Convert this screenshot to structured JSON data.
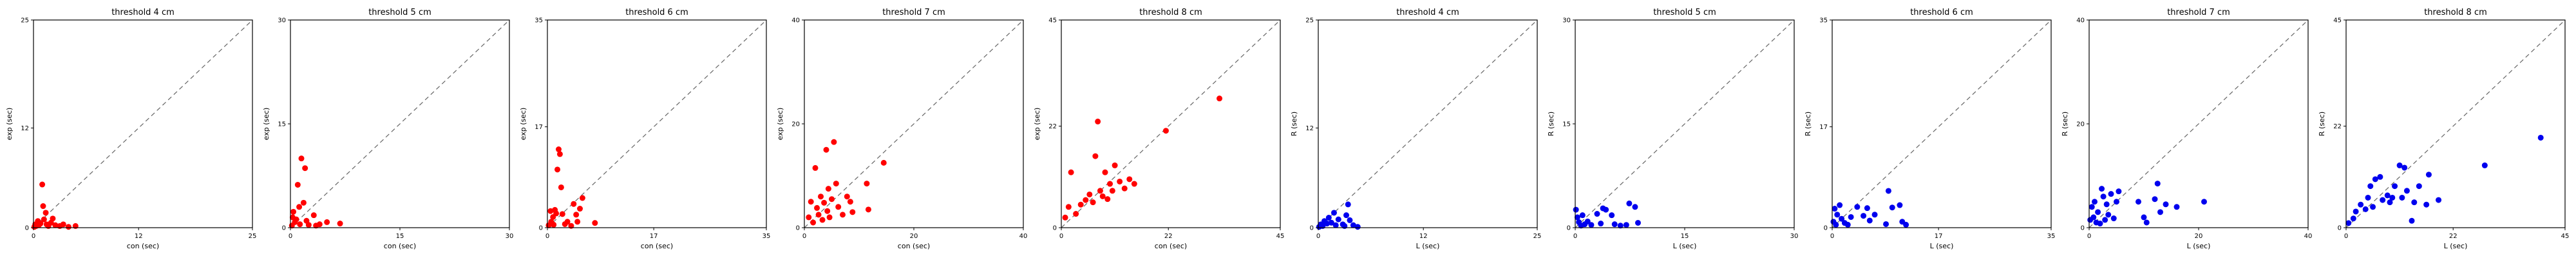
{
  "chart_data": [
    {
      "type": "scatter",
      "title": "threshold 4 cm",
      "xlabel": "con (sec)",
      "ylabel": "exp (sec)",
      "xlim": [
        0,
        25
      ],
      "ylim": [
        0,
        25
      ],
      "xticks": [
        0,
        12,
        25
      ],
      "yticks": [
        0,
        12,
        25
      ],
      "color": "#ff0000",
      "diagonal": true,
      "points": [
        [
          0.1,
          0.1
        ],
        [
          0.2,
          0.4
        ],
        [
          0.3,
          0.2
        ],
        [
          0.5,
          0.8
        ],
        [
          0.6,
          0.3
        ],
        [
          0.8,
          0.5
        ],
        [
          1.0,
          5.2
        ],
        [
          1.1,
          2.6
        ],
        [
          1.2,
          1.0
        ],
        [
          1.4,
          1.8
        ],
        [
          1.5,
          0.4
        ],
        [
          1.7,
          0.2
        ],
        [
          2.0,
          0.6
        ],
        [
          2.2,
          1.1
        ],
        [
          2.5,
          0.3
        ],
        [
          3.0,
          0.2
        ],
        [
          3.4,
          0.4
        ],
        [
          4.0,
          0.1
        ],
        [
          4.8,
          0.2
        ]
      ]
    },
    {
      "type": "scatter",
      "title": "threshold 5 cm",
      "xlabel": "con (sec)",
      "ylabel": "exp (sec)",
      "xlim": [
        0,
        30
      ],
      "ylim": [
        0,
        30
      ],
      "xticks": [
        0,
        15,
        30
      ],
      "yticks": [
        0,
        15,
        30
      ],
      "color": "#ff0000",
      "diagonal": true,
      "points": [
        [
          0.2,
          0.3
        ],
        [
          0.3,
          1.5
        ],
        [
          0.4,
          2.3
        ],
        [
          0.6,
          0.8
        ],
        [
          0.8,
          1.2
        ],
        [
          1.0,
          6.2
        ],
        [
          1.2,
          3.0
        ],
        [
          1.3,
          0.5
        ],
        [
          1.5,
          10.0
        ],
        [
          1.8,
          3.6
        ],
        [
          2.0,
          8.6
        ],
        [
          2.2,
          1.0
        ],
        [
          2.5,
          0.4
        ],
        [
          3.2,
          1.8
        ],
        [
          3.5,
          0.3
        ],
        [
          4.0,
          0.5
        ],
        [
          5.0,
          0.8
        ],
        [
          6.8,
          0.6
        ]
      ]
    },
    {
      "type": "scatter",
      "title": "threshold 6 cm",
      "xlabel": "con (sec)",
      "ylabel": "exp (sec)",
      "xlim": [
        0,
        35
      ],
      "ylim": [
        0,
        35
      ],
      "xticks": [
        0,
        17,
        35
      ],
      "yticks": [
        0,
        17,
        35
      ],
      "color": "#ff0000",
      "diagonal": true,
      "points": [
        [
          0.2,
          0.4
        ],
        [
          0.5,
          2.8
        ],
        [
          0.6,
          1.0
        ],
        [
          0.9,
          1.8
        ],
        [
          1.0,
          0.5
        ],
        [
          1.2,
          3.0
        ],
        [
          1.4,
          2.4
        ],
        [
          1.6,
          9.8
        ],
        [
          1.8,
          13.2
        ],
        [
          2.0,
          12.4
        ],
        [
          2.2,
          6.8
        ],
        [
          2.4,
          2.3
        ],
        [
          2.8,
          0.6
        ],
        [
          3.2,
          1.0
        ],
        [
          3.8,
          0.3
        ],
        [
          4.2,
          4.0
        ],
        [
          4.6,
          2.2
        ],
        [
          4.8,
          1.0
        ],
        [
          5.2,
          3.2
        ],
        [
          5.6,
          5.0
        ],
        [
          7.6,
          0.8
        ]
      ]
    },
    {
      "type": "scatter",
      "title": "threshold 7 cm",
      "xlabel": "con (sec)",
      "ylabel": "exp (sec)",
      "xlim": [
        0,
        40
      ],
      "ylim": [
        0,
        40
      ],
      "xticks": [
        0,
        20,
        40
      ],
      "yticks": [
        0,
        20,
        40
      ],
      "color": "#ff0000",
      "diagonal": true,
      "points": [
        [
          0.8,
          2.0
        ],
        [
          1.2,
          5.0
        ],
        [
          1.6,
          1.0
        ],
        [
          2.0,
          11.5
        ],
        [
          2.3,
          3.8
        ],
        [
          2.6,
          2.5
        ],
        [
          3.0,
          6.0
        ],
        [
          3.3,
          1.5
        ],
        [
          3.6,
          4.8
        ],
        [
          4.0,
          15.0
        ],
        [
          4.2,
          3.2
        ],
        [
          4.4,
          7.5
        ],
        [
          4.6,
          2.0
        ],
        [
          5.0,
          5.5
        ],
        [
          5.4,
          16.5
        ],
        [
          5.8,
          8.5
        ],
        [
          6.2,
          4.0
        ],
        [
          7.0,
          2.5
        ],
        [
          7.8,
          6.0
        ],
        [
          8.4,
          5.0
        ],
        [
          8.8,
          3.0
        ],
        [
          11.4,
          8.5
        ],
        [
          11.7,
          3.5
        ],
        [
          14.5,
          12.5
        ]
      ]
    },
    {
      "type": "scatter",
      "title": "threshold 8 cm",
      "xlabel": "con (sec)",
      "ylabel": "exp (sec)",
      "xlim": [
        0,
        45
      ],
      "ylim": [
        0,
        45
      ],
      "xticks": [
        0,
        22,
        45
      ],
      "yticks": [
        0,
        22,
        45
      ],
      "color": "#ff0000",
      "diagonal": true,
      "points": [
        [
          0.8,
          2.2
        ],
        [
          1.5,
          4.5
        ],
        [
          2.0,
          12.0
        ],
        [
          3.0,
          3.0
        ],
        [
          4.0,
          5.0
        ],
        [
          5.0,
          6.0
        ],
        [
          5.8,
          7.2
        ],
        [
          6.5,
          5.5
        ],
        [
          7.0,
          15.5
        ],
        [
          7.5,
          23.0
        ],
        [
          8.0,
          8.0
        ],
        [
          8.5,
          6.8
        ],
        [
          9.0,
          12.0
        ],
        [
          9.5,
          6.2
        ],
        [
          10.0,
          9.5
        ],
        [
          10.5,
          8.0
        ],
        [
          11.0,
          13.5
        ],
        [
          12.0,
          10.0
        ],
        [
          13.0,
          8.5
        ],
        [
          14.0,
          10.5
        ],
        [
          15.0,
          9.5
        ],
        [
          21.5,
          21.0
        ],
        [
          32.5,
          28.0
        ]
      ]
    },
    {
      "type": "scatter",
      "title": "threshold 4 cm",
      "xlabel": "L (sec)",
      "ylabel": "R (sec)",
      "xlim": [
        0,
        25
      ],
      "ylim": [
        0,
        25
      ],
      "xticks": [
        0,
        12,
        25
      ],
      "yticks": [
        0,
        12,
        25
      ],
      "color": "#0000ee",
      "diagonal": true,
      "points": [
        [
          0.1,
          0.1
        ],
        [
          0.3,
          0.4
        ],
        [
          0.5,
          0.2
        ],
        [
          0.7,
          0.8
        ],
        [
          1.0,
          0.5
        ],
        [
          1.2,
          1.2
        ],
        [
          1.5,
          0.6
        ],
        [
          1.8,
          1.8
        ],
        [
          2.0,
          0.3
        ],
        [
          2.3,
          1.0
        ],
        [
          2.8,
          0.4
        ],
        [
          3.0,
          0.2
        ],
        [
          3.2,
          1.5
        ],
        [
          3.4,
          2.8
        ],
        [
          3.6,
          0.9
        ],
        [
          4.0,
          0.3
        ],
        [
          4.5,
          0.1
        ]
      ]
    },
    {
      "type": "scatter",
      "title": "threshold 5 cm",
      "xlabel": "L (sec)",
      "ylabel": "R (sec)",
      "xlim": [
        0,
        30
      ],
      "ylim": [
        0,
        30
      ],
      "xticks": [
        0,
        15,
        30
      ],
      "yticks": [
        0,
        15,
        30
      ],
      "color": "#0000ee",
      "diagonal": true,
      "points": [
        [
          0.1,
          2.6
        ],
        [
          0.3,
          1.5
        ],
        [
          0.5,
          0.8
        ],
        [
          0.8,
          0.3
        ],
        [
          1.0,
          1.8
        ],
        [
          1.3,
          0.5
        ],
        [
          1.7,
          0.9
        ],
        [
          2.2,
          0.4
        ],
        [
          3.0,
          2.0
        ],
        [
          3.5,
          0.6
        ],
        [
          3.8,
          2.8
        ],
        [
          4.2,
          2.6
        ],
        [
          5.0,
          1.8
        ],
        [
          5.4,
          0.5
        ],
        [
          6.2,
          0.3
        ],
        [
          7.0,
          0.4
        ],
        [
          7.4,
          3.5
        ],
        [
          8.2,
          3.0
        ],
        [
          8.6,
          0.7
        ]
      ]
    },
    {
      "type": "scatter",
      "title": "threshold 6 cm",
      "xlabel": "L (sec)",
      "ylabel": "R (sec)",
      "xlim": [
        0,
        35
      ],
      "ylim": [
        0,
        35
      ],
      "xticks": [
        0,
        17,
        35
      ],
      "yticks": [
        0,
        17,
        35
      ],
      "color": "#0000ee",
      "diagonal": true,
      "points": [
        [
          0.2,
          1.0
        ],
        [
          0.4,
          3.2
        ],
        [
          0.6,
          0.5
        ],
        [
          0.8,
          2.2
        ],
        [
          1.2,
          3.8
        ],
        [
          1.5,
          1.5
        ],
        [
          2.0,
          0.8
        ],
        [
          2.5,
          0.5
        ],
        [
          3.0,
          1.8
        ],
        [
          4.0,
          3.5
        ],
        [
          5.0,
          2.0
        ],
        [
          5.6,
          3.3
        ],
        [
          6.0,
          1.2
        ],
        [
          6.8,
          2.2
        ],
        [
          8.6,
          0.6
        ],
        [
          9.0,
          6.2
        ],
        [
          9.6,
          3.4
        ],
        [
          10.8,
          3.8
        ],
        [
          11.2,
          1.0
        ],
        [
          11.8,
          0.5
        ]
      ]
    },
    {
      "type": "scatter",
      "title": "threshold 7 cm",
      "xlabel": "L (sec)",
      "ylabel": "R (sec)",
      "xlim": [
        0,
        40
      ],
      "ylim": [
        0,
        40
      ],
      "xticks": [
        0,
        20,
        40
      ],
      "yticks": [
        0,
        20,
        40
      ],
      "color": "#0000ee",
      "diagonal": true,
      "points": [
        [
          0.2,
          1.5
        ],
        [
          0.5,
          4.0
        ],
        [
          0.8,
          2.0
        ],
        [
          1.0,
          5.0
        ],
        [
          1.3,
          1.0
        ],
        [
          1.6,
          3.0
        ],
        [
          2.0,
          0.8
        ],
        [
          2.3,
          7.5
        ],
        [
          2.6,
          6.0
        ],
        [
          2.9,
          1.5
        ],
        [
          3.2,
          4.5
        ],
        [
          3.5,
          2.5
        ],
        [
          4.0,
          6.5
        ],
        [
          4.5,
          1.8
        ],
        [
          5.0,
          5.0
        ],
        [
          5.4,
          7.0
        ],
        [
          9.0,
          5.0
        ],
        [
          10.0,
          2.0
        ],
        [
          10.5,
          1.0
        ],
        [
          12.0,
          5.5
        ],
        [
          12.5,
          8.5
        ],
        [
          13.0,
          3.0
        ],
        [
          14.0,
          4.5
        ],
        [
          16.0,
          4.0
        ],
        [
          21.0,
          5.0
        ]
      ]
    },
    {
      "type": "scatter",
      "title": "threshold 8 cm",
      "xlabel": "L (sec)",
      "ylabel": "R (sec)",
      "xlim": [
        0,
        45
      ],
      "ylim": [
        0,
        45
      ],
      "xticks": [
        0,
        22,
        45
      ],
      "yticks": [
        0,
        22,
        45
      ],
      "color": "#0000ee",
      "diagonal": true,
      "points": [
        [
          0.5,
          1.0
        ],
        [
          1.5,
          2.0
        ],
        [
          2.0,
          3.5
        ],
        [
          3.0,
          5.0
        ],
        [
          4.0,
          4.0
        ],
        [
          4.5,
          6.5
        ],
        [
          5.0,
          9.0
        ],
        [
          5.5,
          4.5
        ],
        [
          6.0,
          10.5
        ],
        [
          7.0,
          11.0
        ],
        [
          7.5,
          6.0
        ],
        [
          8.5,
          7.0
        ],
        [
          9.0,
          5.5
        ],
        [
          9.5,
          6.5
        ],
        [
          10.0,
          9.0
        ],
        [
          11.0,
          13.5
        ],
        [
          11.5,
          6.5
        ],
        [
          12.0,
          13.0
        ],
        [
          12.5,
          8.0
        ],
        [
          13.5,
          1.5
        ],
        [
          14.0,
          5.5
        ],
        [
          15.0,
          9.0
        ],
        [
          16.5,
          5.0
        ],
        [
          17.0,
          11.5
        ],
        [
          19.0,
          6.0
        ],
        [
          28.5,
          13.5
        ],
        [
          40.0,
          19.5
        ]
      ]
    }
  ]
}
